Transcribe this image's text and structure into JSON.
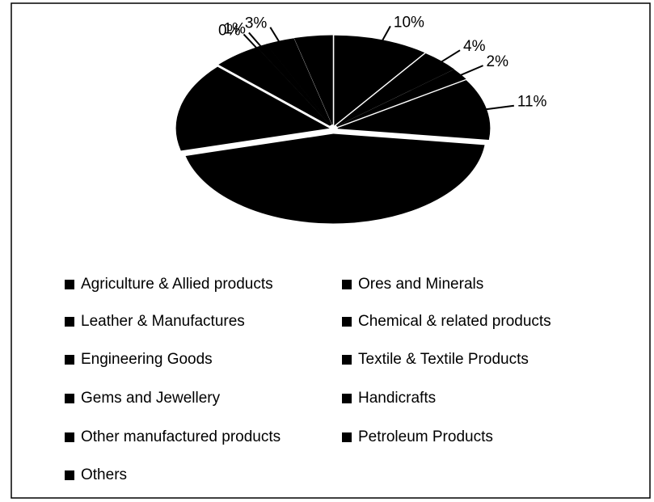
{
  "chart_data": {
    "type": "pie",
    "categories": [
      "Agriculture & Allied products",
      "Ores and Minerals",
      "Leather & Manufactures",
      "Chemical & related products",
      "Engineering Goods",
      "Textile & Textile Products",
      "Gems and Jewellery",
      "Handicrafts",
      "Other manufactured products",
      "Petroleum Products",
      "Others"
    ],
    "values": [
      10,
      4,
      2,
      11,
      44,
      16,
      5,
      0,
      1,
      3,
      4
    ],
    "value_labels": [
      "10%",
      "4%",
      "2%",
      "11%",
      null,
      null,
      null,
      "0%",
      "1%",
      "3%",
      null
    ],
    "color": "#000000",
    "legend": "bottom"
  }
}
